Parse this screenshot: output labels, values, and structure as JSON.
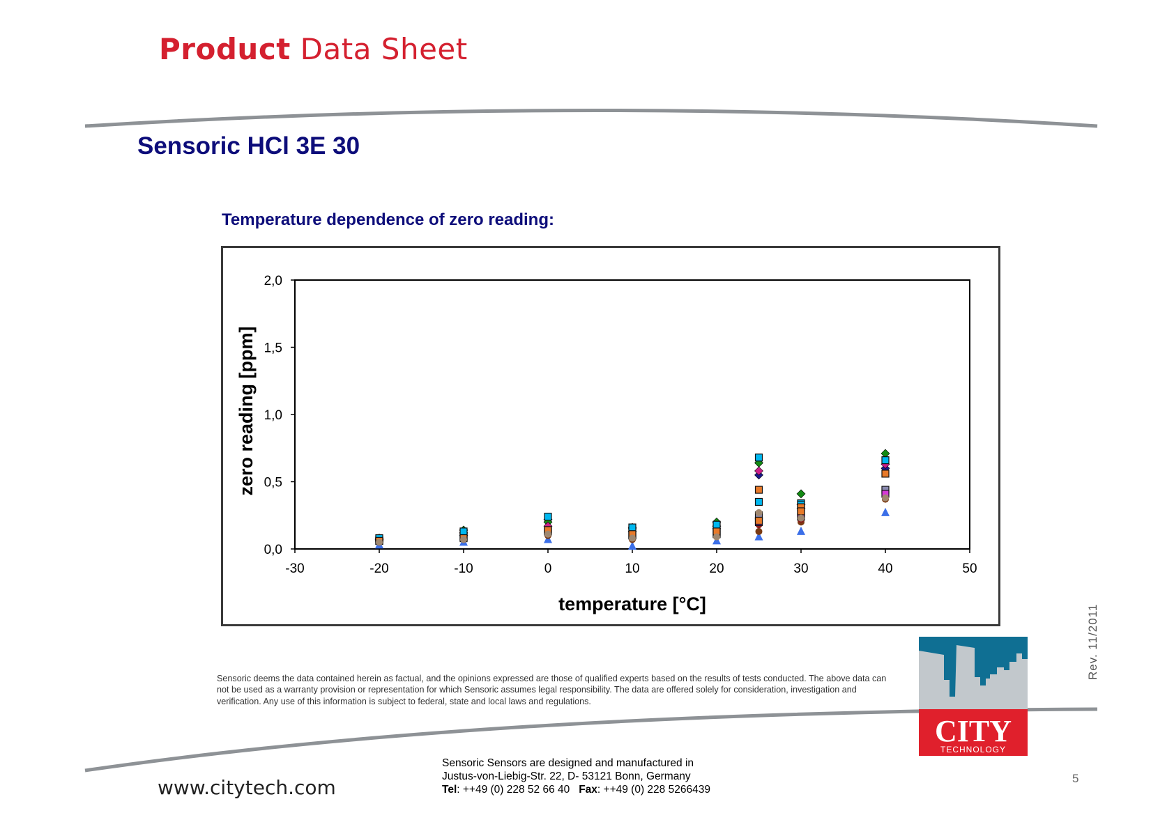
{
  "header": {
    "title_bold": "Product",
    "title_regular": "Data Sheet"
  },
  "document": {
    "title": "Sensoric HCl 3E 30",
    "section_title": "Temperature dependence of zero reading:"
  },
  "chart_data": {
    "type": "scatter",
    "title": "",
    "xlabel": "temperature [°C]",
    "ylabel": "zero reading [ppm]",
    "xlim": [
      -30,
      50
    ],
    "ylim": [
      0,
      2
    ],
    "x_ticks": [
      "-30",
      "-20",
      "-10",
      "0",
      "10",
      "20",
      "30",
      "40",
      "50"
    ],
    "y_ticks": [
      "0,0",
      "0,5",
      "1,0",
      "1,5",
      "2,0"
    ],
    "grid": false,
    "legend": "none",
    "series": [
      {
        "marker": "diamond",
        "color": "#1a1a8a",
        "points": [
          [
            -20,
            0.08
          ],
          [
            -10,
            0.12
          ],
          [
            0,
            0.22
          ],
          [
            10,
            0.15
          ],
          [
            20,
            0.17
          ],
          [
            25,
            0.55
          ],
          [
            30,
            0.33
          ],
          [
            40,
            0.6
          ]
        ]
      },
      {
        "marker": "diamond",
        "color": "#138a13",
        "points": [
          [
            -20,
            0.07
          ],
          [
            -10,
            0.14
          ],
          [
            0,
            0.2
          ],
          [
            10,
            0.16
          ],
          [
            20,
            0.2
          ],
          [
            25,
            0.64
          ],
          [
            30,
            0.41
          ],
          [
            40,
            0.71
          ]
        ]
      },
      {
        "marker": "diamond",
        "color": "#cc1f8a",
        "points": [
          [
            -20,
            0.06
          ],
          [
            -10,
            0.1
          ],
          [
            0,
            0.17
          ],
          [
            10,
            0.13
          ],
          [
            20,
            0.15
          ],
          [
            25,
            0.58
          ],
          [
            30,
            0.3
          ],
          [
            40,
            0.63
          ]
        ]
      },
      {
        "marker": "triangle",
        "color": "#3b6fe8",
        "points": [
          [
            -20,
            0.03
          ],
          [
            -10,
            0.05
          ],
          [
            0,
            0.07
          ],
          [
            10,
            0.02
          ],
          [
            20,
            0.06
          ],
          [
            25,
            0.09
          ],
          [
            30,
            0.13
          ],
          [
            40,
            0.27
          ]
        ]
      },
      {
        "marker": "circle",
        "color": "#7a3a12",
        "points": [
          [
            -20,
            0.05
          ],
          [
            -10,
            0.07
          ],
          [
            0,
            0.1
          ],
          [
            10,
            0.07
          ],
          [
            20,
            0.09
          ],
          [
            25,
            0.13
          ],
          [
            30,
            0.2
          ],
          [
            40,
            0.37
          ]
        ]
      },
      {
        "marker": "circle",
        "color": "#8b1a1a",
        "points": [
          [
            -20,
            0.06
          ],
          [
            -10,
            0.08
          ],
          [
            0,
            0.12
          ],
          [
            10,
            0.09
          ],
          [
            20,
            0.1
          ],
          [
            25,
            0.18
          ],
          [
            30,
            0.22
          ],
          [
            40,
            0.39
          ]
        ]
      },
      {
        "marker": "square",
        "color": "#8a8ab0",
        "points": [
          [
            -20,
            0.07
          ],
          [
            -10,
            0.09
          ],
          [
            0,
            0.13
          ],
          [
            10,
            0.1
          ],
          [
            20,
            0.11
          ],
          [
            25,
            0.25
          ],
          [
            30,
            0.24
          ],
          [
            40,
            0.44
          ]
        ]
      },
      {
        "marker": "square",
        "color": "#d63ad6",
        "points": [
          [
            -20,
            0.06
          ],
          [
            -10,
            0.09
          ],
          [
            0,
            0.14
          ],
          [
            10,
            0.1
          ],
          [
            20,
            0.12
          ],
          [
            25,
            0.2
          ],
          [
            30,
            0.26
          ],
          [
            40,
            0.41
          ]
        ]
      },
      {
        "marker": "square",
        "color": "#00b8f0",
        "points": [
          [
            -20,
            0.08
          ],
          [
            -10,
            0.13
          ],
          [
            0,
            0.24
          ],
          [
            10,
            0.16
          ],
          [
            20,
            0.18
          ],
          [
            25,
            0.68
          ],
          [
            30,
            0.34
          ],
          [
            40,
            0.66
          ]
        ]
      },
      {
        "marker": "square",
        "color": "#00b8f0",
        "points": [
          [
            25,
            0.35
          ],
          [
            30,
            0.33
          ]
        ]
      },
      {
        "marker": "square",
        "color": "#e87a2a",
        "points": [
          [
            -20,
            0.06
          ],
          [
            -10,
            0.08
          ],
          [
            0,
            0.14
          ],
          [
            10,
            0.11
          ],
          [
            20,
            0.13
          ],
          [
            25,
            0.44
          ],
          [
            30,
            0.31
          ],
          [
            40,
            0.56
          ]
        ]
      },
      {
        "marker": "square",
        "color": "#e87a2a",
        "points": [
          [
            25,
            0.21
          ],
          [
            30,
            0.28
          ]
        ]
      },
      {
        "marker": "circle",
        "color": "#a08870",
        "points": [
          [
            -20,
            0.05
          ],
          [
            -10,
            0.07
          ],
          [
            0,
            0.11
          ],
          [
            10,
            0.08
          ],
          [
            20,
            0.09
          ],
          [
            25,
            0.27
          ],
          [
            30,
            0.23
          ],
          [
            40,
            0.38
          ]
        ]
      }
    ]
  },
  "rev": "Rev.  11/2011",
  "disclaimer": "Sensoric deems the data contained herein as factual, and the opinions expressed are those of qualified experts based on the results of tests conducted. The above data can not be used as a warranty provision or representation for which Sensoric assumes legal responsibility. The data are offered solely for consideration, investigation and verification. Any use of this information is subject to federal, state and local laws and regulations.",
  "logo": {
    "brand": "CITY",
    "sub": "TECHNOLOGY",
    "colors": {
      "top": "#0f6f93",
      "bottom": "#e0202c",
      "buildings": "#c2c8cc"
    }
  },
  "footer": {
    "website": "www.citytech.com",
    "address_line1": "Sensoric Sensors are designed and manufactured in",
    "address_line2": "Justus-von-Liebig-Str. 22, D- 53121 Bonn, Germany",
    "tel_label": "Tel",
    "tel_value": ": ++49 (0) 228 52 66 40",
    "fax_label": "Fax",
    "fax_value": ": ++49 (0) 228 5266439",
    "page_number": "5"
  }
}
